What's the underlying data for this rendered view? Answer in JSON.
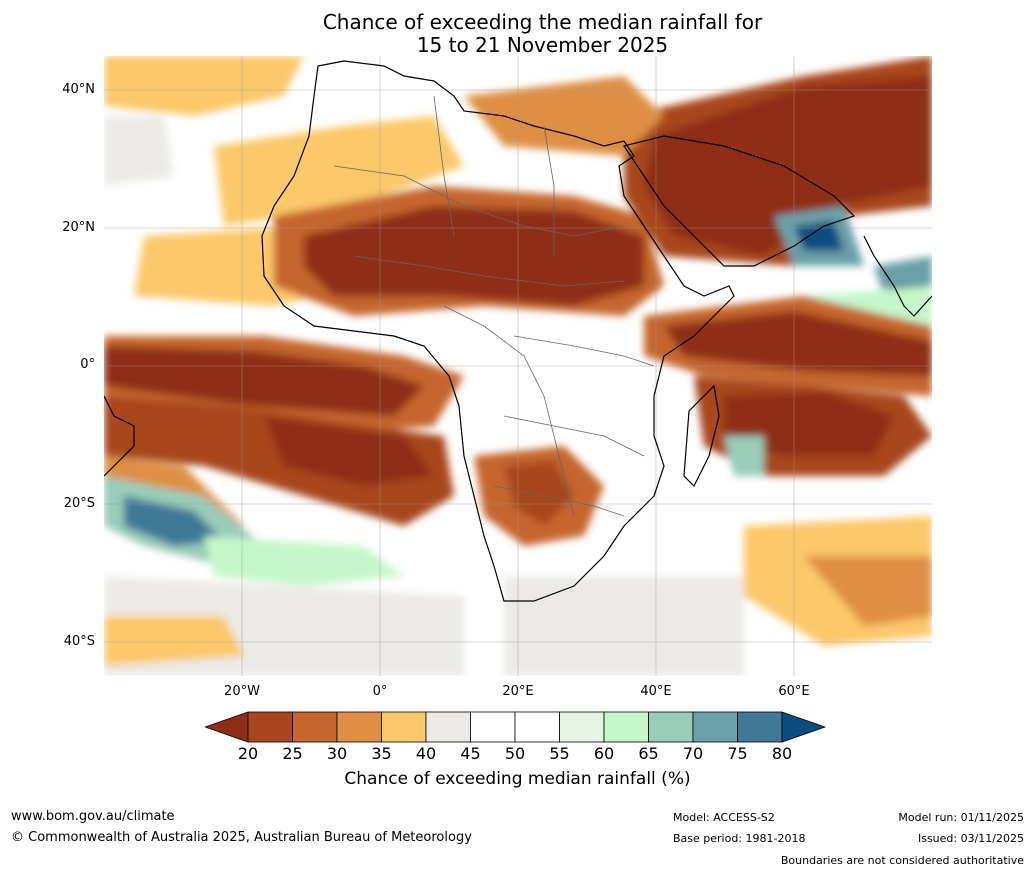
{
  "title_line1": "Chance of exceeding the median rainfall for",
  "title_line2": "15 to 21 November 2025",
  "lat_labels": [
    "40°N",
    "20°N",
    "0°",
    "20°S",
    "40°S"
  ],
  "lon_labels": [
    "20°W",
    "0°",
    "20°E",
    "40°E",
    "60°E"
  ],
  "colorbar": {
    "ticks": [
      "20",
      "25",
      "30",
      "35",
      "40",
      "45",
      "50",
      "55",
      "60",
      "65",
      "70",
      "75",
      "80"
    ],
    "colors": [
      "#8e2e17",
      "#a8461f",
      "#c5662f",
      "#de8f45",
      "#fbc86b",
      "#eceae6",
      "#ffffff",
      "#ffffff",
      "#e6f4e6",
      "#c6f7cb",
      "#99ccb9",
      "#6aa0a8",
      "#417898",
      "#0d4d80"
    ],
    "label": "Chance of exceeding median rainfall (%)"
  },
  "footer": {
    "url": "www.bom.gov.au/climate",
    "copyright": "© Commonwealth of Australia 2025, Australian Bureau of Meteorology",
    "model": "Model: ACCESS-S2",
    "base_period": "Base period: 1981-2018",
    "model_run": "Model run: 01/11/2025",
    "issued": "Issued: 03/11/2025",
    "disclaimer": "Boundaries are not considered authoritative"
  }
}
